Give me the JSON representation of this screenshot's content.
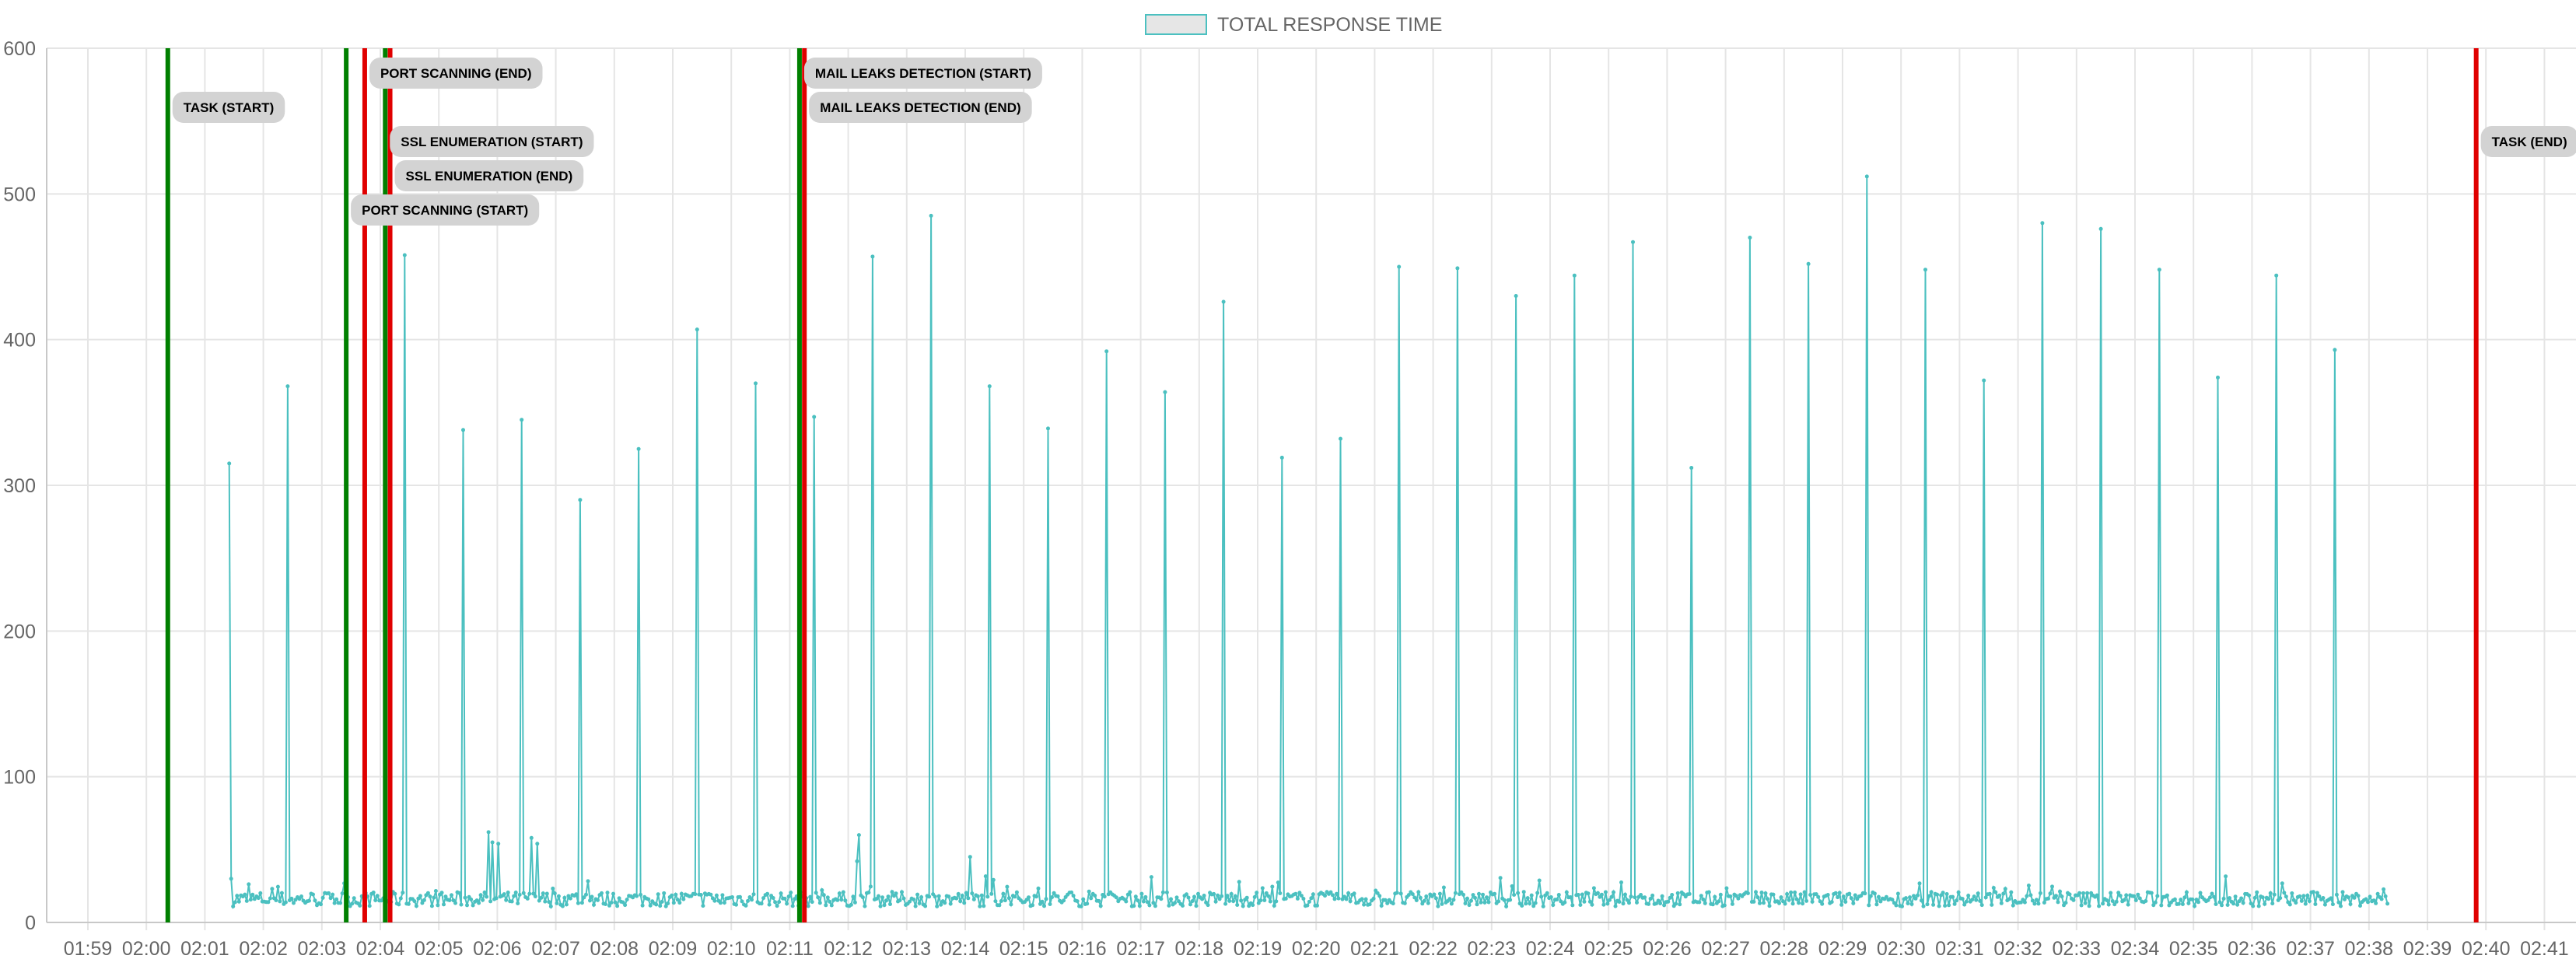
{
  "chart_data": {
    "type": "line",
    "legend": {
      "label": "TOTAL RESPONSE TIME",
      "placement": "top-center"
    },
    "colors": {
      "series": "#4bc0c0",
      "start_marker": "#008000",
      "end_marker": "#e00000",
      "annotation_bg": "#d3d3d3"
    },
    "ylim": [
      0,
      600
    ],
    "y_ticks": [
      0,
      100,
      200,
      300,
      400,
      500,
      600
    ],
    "x_ticks": [
      "01:59",
      "02:00",
      "02:01",
      "02:02",
      "02:03",
      "02:04",
      "02:05",
      "02:06",
      "02:07",
      "02:08",
      "02:09",
      "02:10",
      "02:11",
      "02:12",
      "02:13",
      "02:14",
      "02:15",
      "02:16",
      "02:17",
      "02:18",
      "02:19",
      "02:20",
      "02:21",
      "02:22",
      "02:23",
      "02:24",
      "02:25",
      "02:26",
      "02:27",
      "02:28",
      "02:29",
      "02:30",
      "02:31",
      "02:32",
      "02:33",
      "02:34",
      "02:35",
      "02:36",
      "02:37",
      "02:38",
      "02:39",
      "02:40",
      "02:41"
    ],
    "grid": true,
    "baseline": {
      "start": "02:01:25",
      "end": "02:38:20",
      "typical": 16
    },
    "spikes": [
      {
        "t": "02:01:25",
        "y": 315
      },
      {
        "t": "02:01:26",
        "y": 30
      },
      {
        "t": "02:02:25",
        "y": 368
      },
      {
        "t": "02:03:25",
        "y": 388
      },
      {
        "t": "02:04:25",
        "y": 458
      },
      {
        "t": "02:05:25",
        "y": 338
      },
      {
        "t": "02:05:50",
        "y": 62
      },
      {
        "t": "02:05:55",
        "y": 55
      },
      {
        "t": "02:06:00",
        "y": 54
      },
      {
        "t": "02:06:25",
        "y": 345
      },
      {
        "t": "02:06:35",
        "y": 58
      },
      {
        "t": "02:06:40",
        "y": 54
      },
      {
        "t": "02:07:25",
        "y": 290
      },
      {
        "t": "02:08:25",
        "y": 325
      },
      {
        "t": "02:09:25",
        "y": 407
      },
      {
        "t": "02:10:25",
        "y": 370
      },
      {
        "t": "02:11:25",
        "y": 347
      },
      {
        "t": "02:12:10",
        "y": 60
      },
      {
        "t": "02:12:08",
        "y": 42
      },
      {
        "t": "02:12:25",
        "y": 457
      },
      {
        "t": "02:13:25",
        "y": 485
      },
      {
        "t": "02:14:05",
        "y": 45
      },
      {
        "t": "02:14:25",
        "y": 368
      },
      {
        "t": "02:15:25",
        "y": 339
      },
      {
        "t": "02:16:25",
        "y": 392
      },
      {
        "t": "02:17:25",
        "y": 364
      },
      {
        "t": "02:18:25",
        "y": 426
      },
      {
        "t": "02:19:25",
        "y": 319
      },
      {
        "t": "02:20:25",
        "y": 332
      },
      {
        "t": "02:21:25",
        "y": 450
      },
      {
        "t": "02:22:25",
        "y": 449
      },
      {
        "t": "02:23:25",
        "y": 430
      },
      {
        "t": "02:24:25",
        "y": 444
      },
      {
        "t": "02:25:25",
        "y": 467
      },
      {
        "t": "02:26:25",
        "y": 312
      },
      {
        "t": "02:27:25",
        "y": 470
      },
      {
        "t": "02:28:25",
        "y": 452
      },
      {
        "t": "02:29:25",
        "y": 512
      },
      {
        "t": "02:30:25",
        "y": 448
      },
      {
        "t": "02:31:25",
        "y": 372
      },
      {
        "t": "02:32:25",
        "y": 480
      },
      {
        "t": "02:33:25",
        "y": 476
      },
      {
        "t": "02:34:25",
        "y": 448
      },
      {
        "t": "02:35:25",
        "y": 374
      },
      {
        "t": "02:36:25",
        "y": 444
      },
      {
        "t": "02:37:25",
        "y": 393
      }
    ],
    "markers": [
      {
        "t": "02:00:22",
        "type": "start",
        "label": "TASK (START)",
        "level": 1
      },
      {
        "t": "02:03:25",
        "type": "start",
        "label": "PORT SCANNING (START)",
        "level": 4
      },
      {
        "t": "02:03:44",
        "type": "end",
        "label": "PORT SCANNING (END)",
        "level": 0
      },
      {
        "t": "02:04:05",
        "type": "start",
        "label": "SSL ENUMERATION (START)",
        "level": 2
      },
      {
        "t": "02:04:10",
        "type": "end",
        "label": "SSL ENUMERATION (END)",
        "level": 3
      },
      {
        "t": "02:11:10",
        "type": "start",
        "label": "MAIL LEAKS DETECTION (START)",
        "level": 0
      },
      {
        "t": "02:11:15",
        "type": "end",
        "label": "MAIL LEAKS DETECTION (END)",
        "level": 1
      },
      {
        "t": "02:39:50",
        "type": "end",
        "label": "TASK (END)",
        "level": 2
      }
    ]
  }
}
